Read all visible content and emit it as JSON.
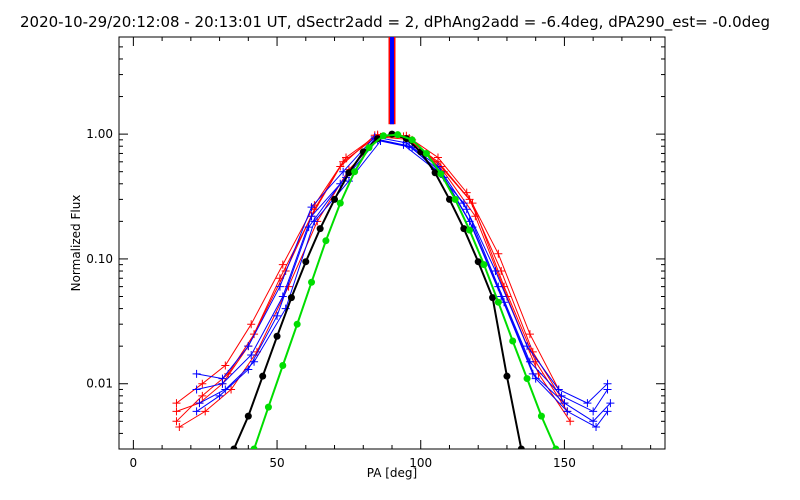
{
  "chart_data": {
    "type": "line",
    "title": "2020-10-29/20:12:08 - 20:13:01 UT, dSectr2add = 2, dPhAng2add = -6.4deg, dPA290_est= -0.0deg",
    "xlabel": "PA [deg]",
    "ylabel": "Normalized Flux",
    "xlim": [
      -5,
      185
    ],
    "ylim": [
      0.003,
      6.0
    ],
    "yscale": "log",
    "grid": false,
    "x_ticks": [
      0,
      50,
      100,
      150
    ],
    "x_tick_labels": [
      "0",
      "50",
      "100",
      "150"
    ],
    "y_ticks": [
      0.01,
      0.1,
      1.0
    ],
    "y_tick_labels": [
      "0.01",
      "0.10",
      "1.00"
    ],
    "vertical_marker": {
      "x": 90,
      "color": "#0000ff",
      "edge_color": "#ff0000"
    },
    "series": [
      {
        "kind": "data",
        "color": "#ff0000",
        "x": [
          15,
          23,
          31,
          40,
          51,
          62,
          72,
          84,
          94,
          106,
          117,
          128,
          139,
          150
        ],
        "y": [
          0.006,
          0.007,
          0.01,
          0.02,
          0.07,
          0.22,
          0.55,
          0.98,
          0.96,
          0.6,
          0.3,
          0.08,
          0.018,
          0.007
        ]
      },
      {
        "kind": "data",
        "color": "#ff0000",
        "x": [
          15,
          24,
          33,
          42,
          53,
          63,
          73,
          85,
          96,
          107,
          118,
          129,
          140,
          151
        ],
        "y": [
          0.005,
          0.008,
          0.012,
          0.025,
          0.08,
          0.25,
          0.6,
          0.97,
          0.93,
          0.55,
          0.28,
          0.06,
          0.015,
          0.006
        ]
      },
      {
        "kind": "data",
        "color": "#ff0000",
        "x": [
          16,
          25,
          34,
          43,
          54,
          64,
          75,
          86,
          97,
          108,
          119,
          130,
          141,
          152
        ],
        "y": [
          0.0045,
          0.006,
          0.009,
          0.018,
          0.06,
          0.2,
          0.52,
          0.95,
          0.9,
          0.5,
          0.22,
          0.05,
          0.012,
          0.005
        ]
      },
      {
        "kind": "data",
        "color": "#ff0000",
        "x": [
          15,
          24,
          32,
          41,
          52,
          63,
          74,
          85,
          95,
          106,
          116,
          127,
          138,
          148
        ],
        "y": [
          0.007,
          0.01,
          0.014,
          0.03,
          0.09,
          0.27,
          0.65,
          0.99,
          0.97,
          0.65,
          0.34,
          0.11,
          0.025,
          0.009
        ]
      },
      {
        "kind": "data",
        "color": "#0000ff",
        "x": [
          22,
          31,
          40,
          51,
          62,
          73,
          84,
          95,
          106,
          116,
          127,
          138,
          149,
          160,
          165
        ],
        "y": [
          0.012,
          0.011,
          0.02,
          0.06,
          0.26,
          0.5,
          0.95,
          0.85,
          0.55,
          0.25,
          0.06,
          0.015,
          0.008,
          0.006,
          0.009
        ]
      },
      {
        "kind": "data",
        "color": "#0000ff",
        "x": [
          22,
          31,
          41,
          52,
          62,
          74,
          85,
          96,
          107,
          117,
          128,
          139,
          150,
          160,
          166
        ],
        "y": [
          0.009,
          0.01,
          0.017,
          0.05,
          0.22,
          0.45,
          0.9,
          0.8,
          0.5,
          0.2,
          0.05,
          0.012,
          0.007,
          0.005,
          0.007
        ]
      },
      {
        "kind": "data",
        "color": "#0000ff",
        "x": [
          23,
          32,
          42,
          53,
          63,
          75,
          86,
          97,
          108,
          118,
          129,
          140,
          151,
          161,
          165
        ],
        "y": [
          0.007,
          0.009,
          0.015,
          0.04,
          0.2,
          0.42,
          0.88,
          0.78,
          0.45,
          0.18,
          0.045,
          0.011,
          0.006,
          0.0045,
          0.006
        ]
      },
      {
        "kind": "data",
        "color": "#0000ff",
        "x": [
          22,
          30,
          40,
          50,
          61,
          72,
          84,
          94,
          105,
          115,
          126,
          137,
          148,
          158,
          165
        ],
        "y": [
          0.006,
          0.008,
          0.013,
          0.035,
          0.18,
          0.4,
          0.92,
          0.82,
          0.52,
          0.28,
          0.08,
          0.02,
          0.009,
          0.007,
          0.01
        ]
      },
      {
        "kind": "fit",
        "color": "#000000",
        "x": [
          35,
          40,
          45,
          50,
          55,
          60,
          65,
          70,
          75,
          80,
          85,
          90,
          95,
          100,
          105,
          110,
          115,
          120,
          125,
          130,
          135
        ],
        "y": [
          0.003,
          0.0055,
          0.0115,
          0.024,
          0.049,
          0.095,
          0.175,
          0.3,
          0.49,
          0.72,
          0.92,
          1.0,
          0.92,
          0.72,
          0.49,
          0.3,
          0.175,
          0.095,
          0.049,
          0.0115,
          0.003
        ]
      },
      {
        "kind": "fit",
        "color": "#00dd00",
        "x": [
          42,
          47,
          52,
          57,
          62,
          67,
          72,
          77,
          82,
          87,
          92,
          97,
          102,
          107,
          112,
          117,
          122,
          127,
          132,
          137,
          142,
          147
        ],
        "y": [
          0.003,
          0.0065,
          0.014,
          0.03,
          0.065,
          0.14,
          0.28,
          0.5,
          0.78,
          0.97,
          0.99,
          0.9,
          0.7,
          0.48,
          0.3,
          0.17,
          0.09,
          0.045,
          0.022,
          0.011,
          0.0055,
          0.003
        ]
      }
    ]
  }
}
